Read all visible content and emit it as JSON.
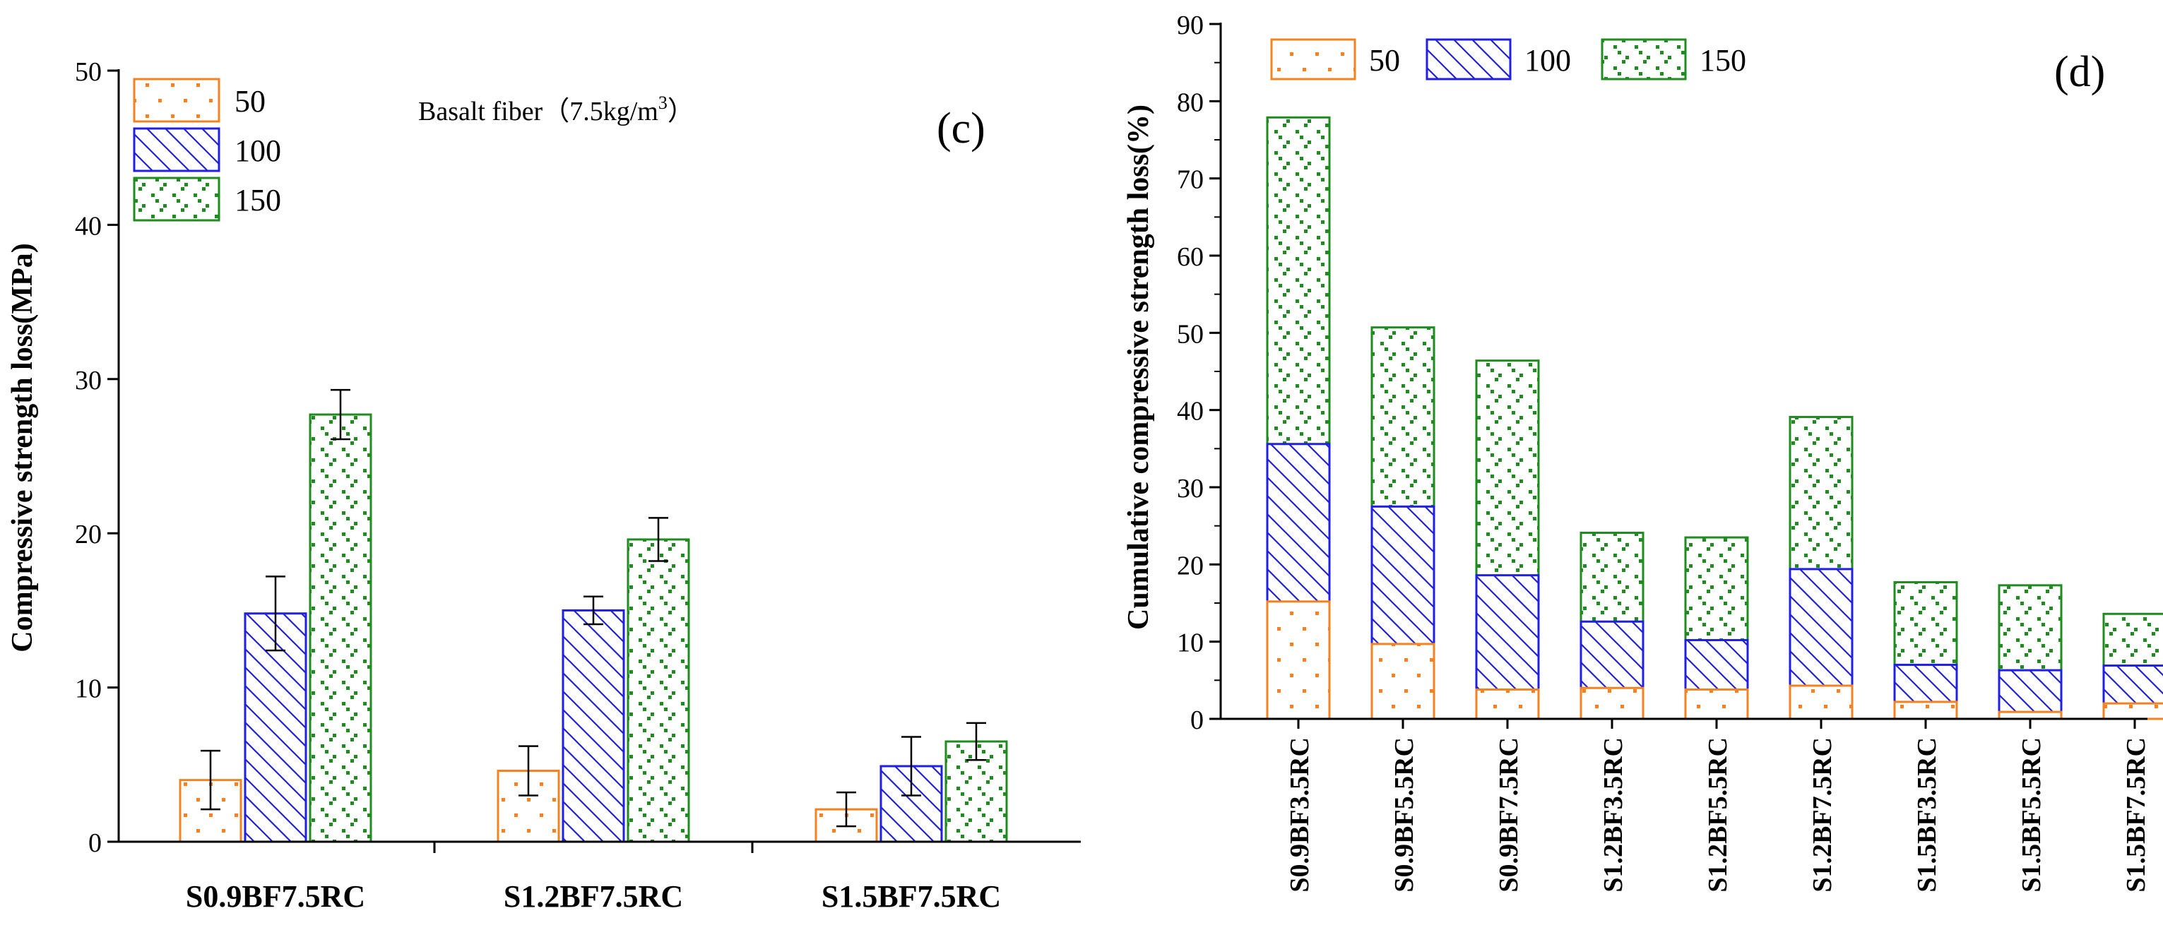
{
  "colors": {
    "s50": "#f58220",
    "s100": "#1f1fe6",
    "s150": "#1e8c1e",
    "axis": "#000000"
  },
  "chart_data": [
    {
      "type": "bar",
      "panel_label": "(c)",
      "annotation": "Basalt fiber（7.5kg/m",
      "annotation_sup": "3",
      "annotation_close": "）",
      "ylabel": "Compressive strength loss(MPa)",
      "xlabel": "",
      "ylim": [
        0,
        50
      ],
      "yticks": [
        0,
        10,
        20,
        30,
        40,
        50
      ],
      "categories": [
        "S0.9BF7.5RC",
        "S1.2BF7.5RC",
        "S1.5BF7.5RC"
      ],
      "legend": [
        "50",
        "100",
        "150"
      ],
      "series": [
        {
          "name": "50",
          "values": [
            4.0,
            4.6,
            2.1
          ],
          "errors": [
            1.9,
            1.6,
            1.1
          ]
        },
        {
          "name": "100",
          "values": [
            14.8,
            15.0,
            4.9
          ],
          "errors": [
            2.4,
            0.9,
            1.9
          ]
        },
        {
          "name": "150",
          "values": [
            27.7,
            19.6,
            6.5
          ],
          "errors": [
            1.6,
            1.4,
            1.2
          ]
        }
      ]
    },
    {
      "type": "bar",
      "stacked": true,
      "panel_label": "(d)",
      "ylabel": "Cumulative compressive strength loss(%)",
      "xlabel": "",
      "ylim": [
        0,
        90
      ],
      "yticks": [
        0,
        10,
        20,
        30,
        40,
        50,
        60,
        70,
        80,
        90
      ],
      "categories": [
        "S0.9BF3.5RC",
        "S0.9BF5.5RC",
        "S0.9BF7.5RC",
        "S1.2BF3.5RC",
        "S1.2BF5.5RC",
        "S1.2BF7.5RC",
        "S1.5BF3.5RC",
        "S1.5BF5.5RC",
        "S1.5BF7.5RC"
      ],
      "legend": [
        "50",
        "100",
        "150"
      ],
      "series_cumulative": [
        {
          "name": "50",
          "values": [
            15.2,
            9.7,
            3.8,
            4.0,
            3.8,
            4.3,
            2.2,
            0.9,
            2.0
          ]
        },
        {
          "name": "100",
          "values": [
            35.6,
            27.5,
            18.6,
            12.6,
            10.2,
            19.4,
            7.0,
            6.3,
            6.9
          ]
        },
        {
          "name": "150",
          "values": [
            77.9,
            50.7,
            46.4,
            24.1,
            23.5,
            39.1,
            17.7,
            17.3,
            13.6
          ]
        }
      ]
    }
  ]
}
